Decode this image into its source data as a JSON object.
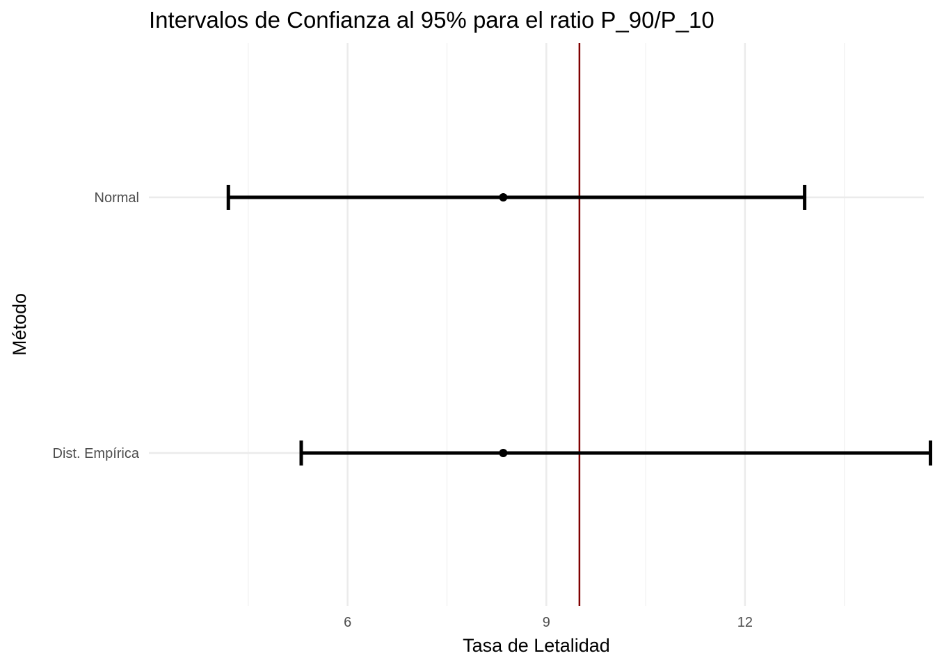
{
  "chart_data": {
    "type": "errorbar",
    "title": "Intervalos de Confianza al 95% para el ratio P_90/P_10",
    "xlabel": "Tasa de Letalidad",
    "ylabel": "Método",
    "xlim": [
      3.0,
      14.7
    ],
    "x_ticks": [
      6,
      9,
      12
    ],
    "x_minor_ticks": [
      4.5,
      7.5,
      10.5,
      13.5
    ],
    "categories": [
      "Normal",
      "Dist. Empírica"
    ],
    "intervals": [
      {
        "category": "Normal",
        "lower": 4.2,
        "estimate": 8.35,
        "upper": 12.9
      },
      {
        "category": "Dist. Empírica",
        "lower": 5.3,
        "estimate": 8.35,
        "upper": 14.8
      }
    ],
    "reference_line": {
      "x": 9.5,
      "color": "#800000"
    },
    "grid": true,
    "colors": {
      "interval": "#000000",
      "grid": "#ebebeb"
    }
  }
}
